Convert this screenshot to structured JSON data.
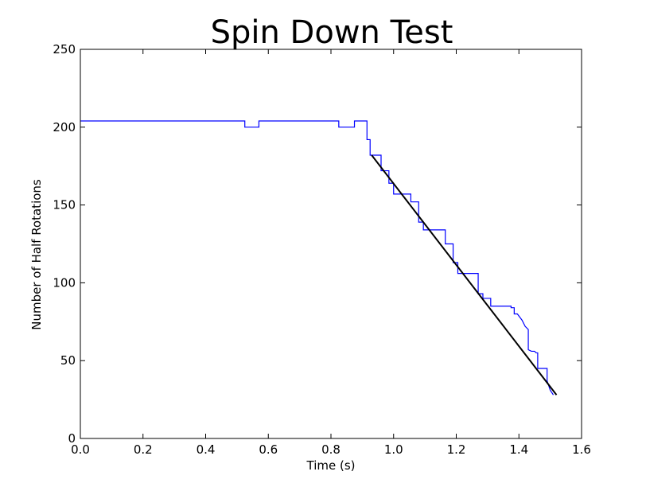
{
  "chart_data": {
    "type": "line",
    "title": "Spin Down Test",
    "xlabel": "Time (s)",
    "ylabel": "Number of Half Rotations",
    "xlim": [
      0.0,
      1.6
    ],
    "ylim": [
      0,
      250
    ],
    "x_ticks": [
      "0.0",
      "0.2",
      "0.4",
      "0.6",
      "0.8",
      "1.0",
      "1.2",
      "1.4",
      "1.6"
    ],
    "y_ticks": [
      "0",
      "50",
      "100",
      "150",
      "200",
      "250"
    ],
    "grid": false,
    "legend": "none",
    "series": [
      {
        "color": "#0000ff",
        "style": "step",
        "points": [
          [
            0.0,
            204
          ],
          [
            0.525,
            204
          ],
          [
            0.525,
            200
          ],
          [
            0.57,
            200
          ],
          [
            0.57,
            204
          ],
          [
            0.825,
            204
          ],
          [
            0.825,
            200
          ],
          [
            0.875,
            200
          ],
          [
            0.875,
            204
          ],
          [
            0.915,
            204
          ],
          [
            0.915,
            192
          ],
          [
            0.925,
            192
          ],
          [
            0.925,
            182
          ],
          [
            0.96,
            182
          ],
          [
            0.96,
            172
          ],
          [
            0.985,
            172
          ],
          [
            0.985,
            164
          ],
          [
            1.0,
            164
          ],
          [
            1.0,
            157
          ],
          [
            1.055,
            157
          ],
          [
            1.055,
            152
          ],
          [
            1.08,
            152
          ],
          [
            1.08,
            139
          ],
          [
            1.095,
            139
          ],
          [
            1.095,
            134
          ],
          [
            1.165,
            134
          ],
          [
            1.165,
            125
          ],
          [
            1.19,
            125
          ],
          [
            1.19,
            113
          ],
          [
            1.205,
            113
          ],
          [
            1.205,
            106
          ],
          [
            1.27,
            106
          ],
          [
            1.27,
            93
          ],
          [
            1.285,
            93
          ],
          [
            1.285,
            90
          ],
          [
            1.31,
            90
          ],
          [
            1.31,
            85
          ],
          [
            1.375,
            85
          ],
          [
            1.375,
            84
          ],
          [
            1.385,
            84
          ],
          [
            1.385,
            80
          ],
          [
            1.395,
            80
          ],
          [
            1.41,
            76
          ],
          [
            1.42,
            72
          ],
          [
            1.43,
            70
          ],
          [
            1.43,
            57
          ],
          [
            1.44,
            56
          ],
          [
            1.45,
            56
          ],
          [
            1.455,
            55
          ],
          [
            1.46,
            55
          ],
          [
            1.46,
            45
          ],
          [
            1.49,
            45
          ],
          [
            1.49,
            37
          ],
          [
            1.5,
            31
          ],
          [
            1.51,
            28
          ]
        ]
      },
      {
        "color": "#000000",
        "style": "line",
        "points": [
          [
            0.93,
            182
          ],
          [
            1.52,
            28
          ]
        ]
      }
    ]
  }
}
